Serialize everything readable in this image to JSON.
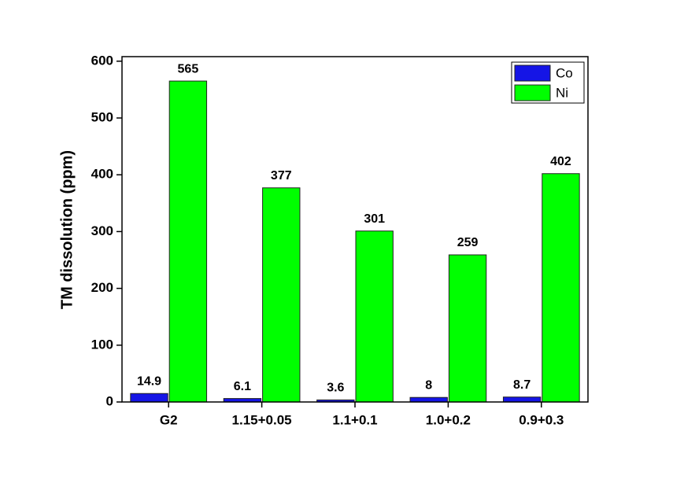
{
  "chart_data": {
    "type": "bar",
    "y_label": "TM dissolution (ppm)",
    "categories": [
      "G2",
      "1.15+0.05",
      "1.1+0.1",
      "1.0+0.2",
      "0.9+0.3"
    ],
    "series": [
      {
        "name": "Co",
        "color": "#1515e6",
        "values": [
          14.9,
          6.1,
          3.6,
          8,
          8.7
        ]
      },
      {
        "name": "Ni",
        "color": "#00ff00",
        "values": [
          565,
          377,
          301,
          259,
          402
        ]
      }
    ],
    "ylim": [
      0,
      608
    ],
    "yticks": [
      0,
      100,
      200,
      300,
      400,
      500,
      600
    ],
    "legend": "top-right"
  }
}
